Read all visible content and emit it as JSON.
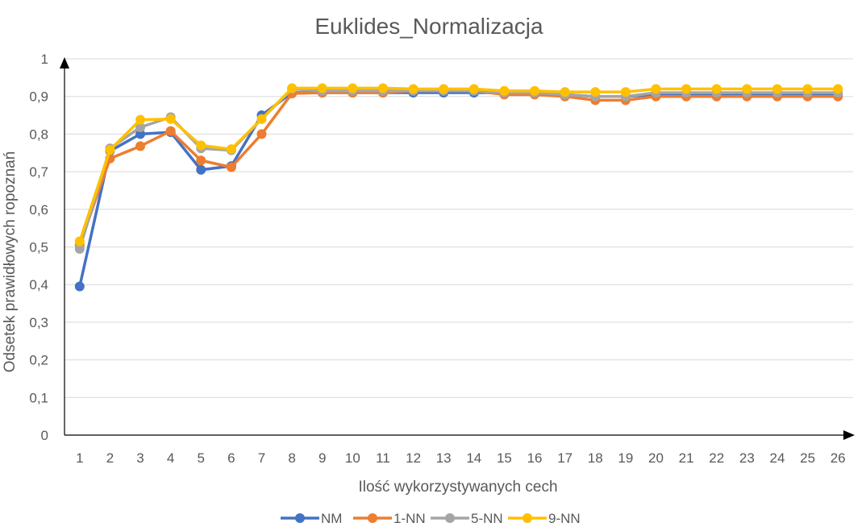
{
  "chart_data": {
    "type": "line",
    "title": "Euklides_Normalizacja",
    "xlabel": "Ilość wykorzystywanych cech",
    "ylabel": "Odsetek prawidłowych ropoznań",
    "categories": [
      "1",
      "2",
      "3",
      "4",
      "5",
      "6",
      "7",
      "8",
      "9",
      "10",
      "11",
      "12",
      "13",
      "14",
      "15",
      "16",
      "17",
      "18",
      "19",
      "20",
      "21",
      "22",
      "23",
      "24",
      "25",
      "26"
    ],
    "y_ticks": [
      "0",
      "0,1",
      "0,2",
      "0,3",
      "0,4",
      "0,5",
      "0,6",
      "0,7",
      "0,8",
      "0,9",
      "1"
    ],
    "ylim": [
      0,
      1
    ],
    "grid": true,
    "legend_position": "bottom",
    "series": [
      {
        "name": "NM",
        "color": "#4472C4",
        "values": [
          0.395,
          0.755,
          0.8,
          0.805,
          0.705,
          0.715,
          0.85,
          0.91,
          0.91,
          0.91,
          0.91,
          0.91,
          0.91,
          0.91,
          0.91,
          0.91,
          0.905,
          0.9,
          0.9,
          0.905,
          0.905,
          0.905,
          0.905,
          0.905,
          0.905,
          0.905
        ]
      },
      {
        "name": "1-NN",
        "color": "#ED7D31",
        "values": [
          0.505,
          0.735,
          0.768,
          0.808,
          0.73,
          0.712,
          0.8,
          0.908,
          0.91,
          0.91,
          0.91,
          0.915,
          0.915,
          0.915,
          0.905,
          0.905,
          0.9,
          0.89,
          0.89,
          0.9,
          0.9,
          0.9,
          0.9,
          0.9,
          0.9,
          0.9
        ]
      },
      {
        "name": "5-NN",
        "color": "#A5A5A5",
        "values": [
          0.495,
          0.762,
          0.818,
          0.845,
          0.762,
          0.757,
          0.84,
          0.92,
          0.915,
          0.915,
          0.915,
          0.915,
          0.915,
          0.915,
          0.91,
          0.91,
          0.905,
          0.9,
          0.9,
          0.91,
          0.91,
          0.91,
          0.91,
          0.91,
          0.91,
          0.91
        ]
      },
      {
        "name": "9-NN",
        "color": "#FFC000",
        "values": [
          0.515,
          0.758,
          0.838,
          0.84,
          0.77,
          0.76,
          0.84,
          0.922,
          0.922,
          0.922,
          0.922,
          0.92,
          0.92,
          0.92,
          0.915,
          0.915,
          0.912,
          0.912,
          0.912,
          0.92,
          0.92,
          0.92,
          0.92,
          0.92,
          0.92,
          0.92
        ]
      }
    ]
  }
}
